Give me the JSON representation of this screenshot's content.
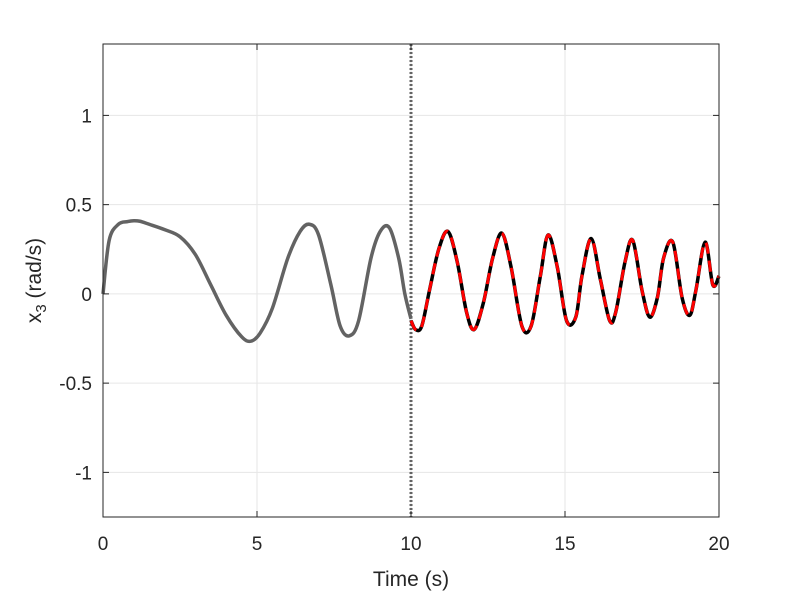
{
  "chart_data": {
    "type": "line",
    "xlabel": "Time (s)",
    "ylabel_main": "x",
    "ylabel_sub": "3",
    "ylabel_rest": " (rad/s)",
    "xlim": [
      0,
      20
    ],
    "ylim": [
      -1.25,
      1.4
    ],
    "xticks": [
      0,
      5,
      10,
      15,
      20
    ],
    "yticks": [
      -1,
      -0.5,
      0,
      0.5,
      1
    ],
    "xtick_labels": [
      "0",
      "5",
      "10",
      "15",
      "20"
    ],
    "ytick_labels": [
      "-1",
      "-0.5",
      "0",
      "0.5",
      "1"
    ],
    "grid": true,
    "vertical_marker_x": 10,
    "colors": {
      "history": "#636363",
      "reference": "#000000",
      "prediction": "#ff0000",
      "marker": "#636363",
      "grid": "#e6e6e6",
      "axis": "#262626"
    },
    "series": [
      {
        "x": [
          0,
          0.2,
          0.5,
          0.8,
          1.0,
          1.2,
          1.5,
          2.0,
          2.5,
          3.0,
          3.5,
          4.0,
          4.5,
          4.8,
          5.1,
          5.5,
          6.0,
          6.4,
          6.7,
          7.0,
          7.4,
          7.7,
          8.0,
          8.3,
          8.7,
          9.0,
          9.3,
          9.6,
          9.8,
          10.0
        ],
        "y": [
          0.0,
          0.3,
          0.39,
          0.405,
          0.41,
          0.407,
          0.39,
          0.36,
          0.32,
          0.22,
          0.05,
          -0.12,
          -0.24,
          -0.265,
          -0.22,
          -0.08,
          0.2,
          0.35,
          0.39,
          0.33,
          0.05,
          -0.18,
          -0.235,
          -0.15,
          0.2,
          0.35,
          0.37,
          0.2,
          0.0,
          -0.14
        ]
      },
      {
        "x": [
          10.0,
          10.15,
          10.35,
          10.6,
          10.9,
          11.2,
          11.5,
          11.8,
          12.05,
          12.35,
          12.65,
          12.95,
          13.25,
          13.6,
          13.9,
          14.2,
          14.45,
          14.75,
          15.05,
          15.35,
          15.55,
          15.85,
          16.15,
          16.45,
          16.65,
          16.95,
          17.2,
          17.5,
          17.75,
          18.0,
          18.2,
          18.5,
          18.8,
          19.05,
          19.25,
          19.55,
          19.8,
          20.0
        ],
        "y": [
          -0.15,
          -0.2,
          -0.18,
          0.02,
          0.25,
          0.35,
          0.18,
          -0.1,
          -0.2,
          -0.05,
          0.2,
          0.34,
          0.15,
          -0.18,
          -0.18,
          0.1,
          0.33,
          0.15,
          -0.15,
          -0.13,
          0.1,
          0.31,
          0.08,
          -0.15,
          -0.1,
          0.18,
          0.3,
          0.02,
          -0.13,
          -0.02,
          0.2,
          0.29,
          -0.02,
          -0.12,
          0.02,
          0.29,
          0.05,
          0.1
        ]
      },
      {
        "x": [
          10.0,
          10.15,
          10.35,
          10.6,
          10.9,
          11.2,
          11.5,
          11.8,
          12.05,
          12.35,
          12.65,
          12.95,
          13.25,
          13.6,
          13.9,
          14.2,
          14.45,
          14.75,
          15.05,
          15.35,
          15.55,
          15.85,
          16.15,
          16.45,
          16.65,
          16.95,
          17.2,
          17.5,
          17.75,
          18.0,
          18.2,
          18.5,
          18.8,
          19.05,
          19.25,
          19.55,
          19.8,
          20.0
        ],
        "y": [
          -0.15,
          -0.2,
          -0.18,
          0.02,
          0.25,
          0.35,
          0.18,
          -0.1,
          -0.2,
          -0.05,
          0.2,
          0.34,
          0.15,
          -0.18,
          -0.18,
          0.1,
          0.33,
          0.15,
          -0.15,
          -0.13,
          0.1,
          0.31,
          0.08,
          -0.15,
          -0.1,
          0.18,
          0.3,
          0.02,
          -0.13,
          -0.02,
          0.2,
          0.29,
          -0.02,
          -0.12,
          0.02,
          0.29,
          0.05,
          0.1
        ]
      }
    ]
  }
}
